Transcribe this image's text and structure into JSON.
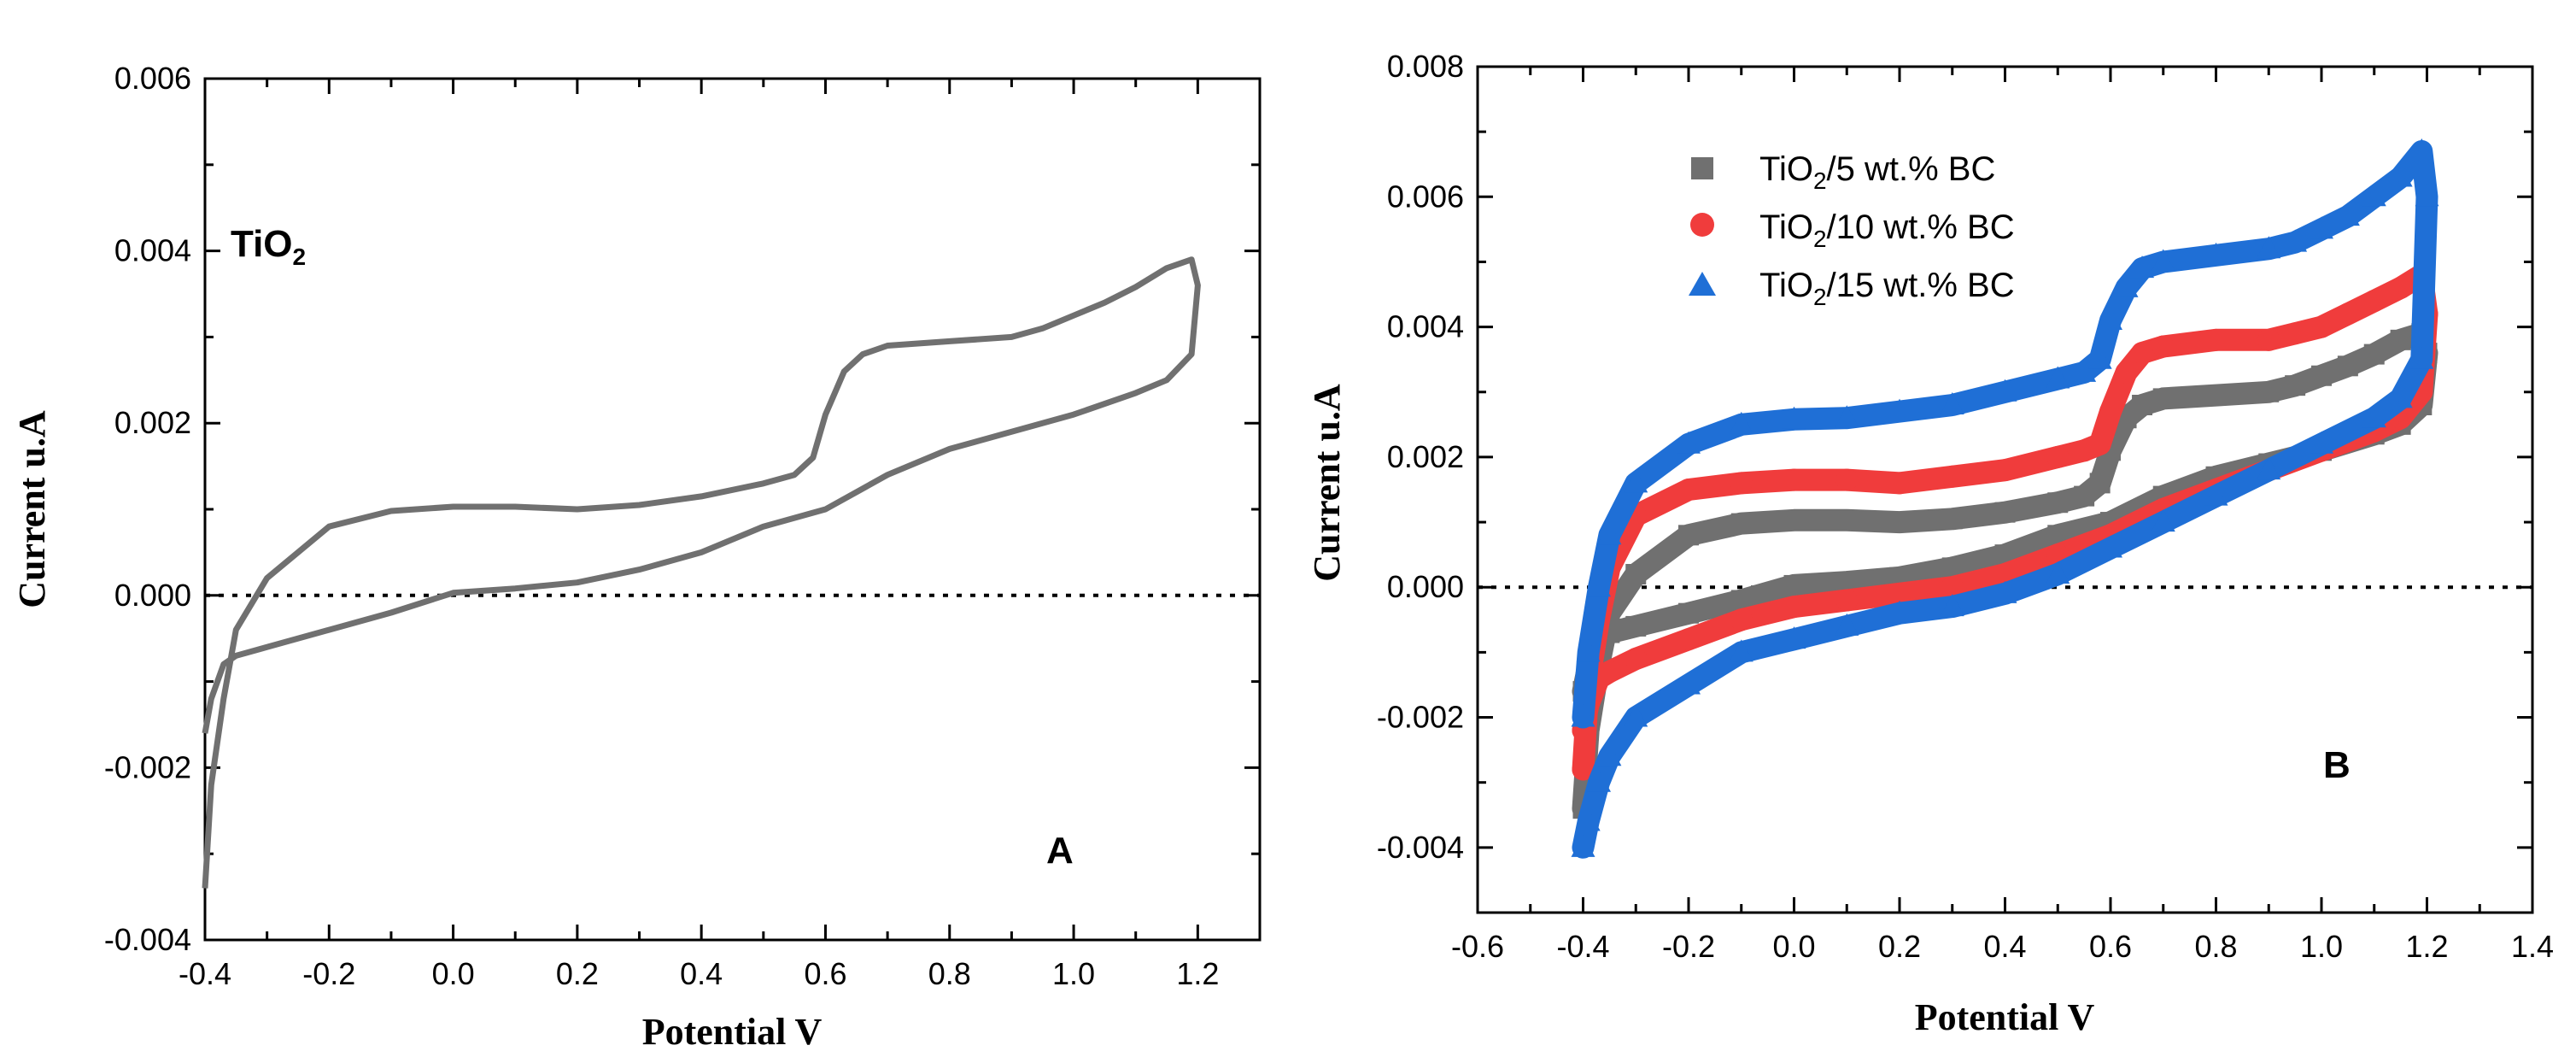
{
  "chart_data": [
    {
      "type": "line",
      "panel_label": "A",
      "annotation": {
        "base": "TiO",
        "sub": "2"
      },
      "xlabel": "Potential V",
      "ylabel": "Current u.A",
      "xlim": [
        -0.4,
        1.3
      ],
      "ylim": [
        -0.004,
        0.006
      ],
      "xticks": [
        -0.4,
        -0.2,
        0.0,
        0.2,
        0.4,
        0.6,
        0.8,
        1.0,
        1.2
      ],
      "xtick_labels": [
        "-0.4",
        "-0.2",
        "0.0",
        "0.2",
        "0.4",
        "0.6",
        "0.8",
        "1.0",
        "1.2"
      ],
      "yticks": [
        -0.004,
        -0.002,
        0.0,
        0.002,
        0.004,
        0.006
      ],
      "ytick_labels": [
        "-0.004",
        "-0.002",
        "0.000",
        "0.002",
        "0.004",
        "0.006"
      ],
      "zero_line": true,
      "series": [
        {
          "name": "TiO2",
          "color": "#707070",
          "x": [
            -0.4,
            -0.39,
            -0.37,
            -0.35,
            -0.3,
            -0.2,
            -0.1,
            0.0,
            0.1,
            0.2,
            0.3,
            0.4,
            0.5,
            0.55,
            0.58,
            0.6,
            0.63,
            0.66,
            0.7,
            0.8,
            0.9,
            0.95,
            1.0,
            1.05,
            1.1,
            1.15,
            1.19,
            1.2,
            1.19,
            1.15,
            1.1,
            1.0,
            0.9,
            0.8,
            0.7,
            0.6,
            0.5,
            0.4,
            0.3,
            0.2,
            0.1,
            0.0,
            -0.1,
            -0.2,
            -0.3,
            -0.35,
            -0.37,
            -0.39,
            -0.4
          ],
          "y": [
            -0.0034,
            -0.0022,
            -0.0012,
            -0.0004,
            0.0002,
            0.0008,
            0.00098,
            0.00103,
            0.00103,
            0.001,
            0.00105,
            0.00115,
            0.0013,
            0.0014,
            0.0016,
            0.0021,
            0.0026,
            0.0028,
            0.0029,
            0.00295,
            0.003,
            0.0031,
            0.00325,
            0.0034,
            0.00358,
            0.0038,
            0.0039,
            0.0036,
            0.0028,
            0.0025,
            0.00235,
            0.0021,
            0.0019,
            0.0017,
            0.0014,
            0.001,
            0.0008,
            0.0005,
            0.0003,
            0.00015,
            8e-05,
            3e-05,
            -0.0002,
            -0.0004,
            -0.0006,
            -0.0007,
            -0.0008,
            -0.0012,
            -0.0016
          ]
        }
      ]
    },
    {
      "type": "scatter",
      "panel_label": "B",
      "xlabel": "Potential V",
      "ylabel": "Current u.A",
      "xlim": [
        -0.6,
        1.4
      ],
      "ylim": [
        -0.005,
        0.008
      ],
      "xticks": [
        -0.6,
        -0.4,
        -0.2,
        0.0,
        0.2,
        0.4,
        0.6,
        0.8,
        1.0,
        1.2,
        1.4
      ],
      "xtick_labels": [
        "-0.6",
        "-0.4",
        "-0.2",
        "0.0",
        "0.2",
        "0.4",
        "0.6",
        "0.8",
        "1.0",
        "1.2",
        "1.4"
      ],
      "yticks": [
        -0.004,
        -0.002,
        0.0,
        0.002,
        0.004,
        0.006,
        0.008
      ],
      "ytick_labels": [
        "-0.004",
        "-0.002",
        "0.000",
        "0.002",
        "0.004",
        "0.006",
        "0.008"
      ],
      "zero_line": true,
      "legend_position": "top-left",
      "series": [
        {
          "name": "TiO2/5 wt.% BC",
          "legend": {
            "pre": "TiO",
            "sub": "2",
            "post": "/5 wt.% BC"
          },
          "marker": "square",
          "color": "#707070",
          "x": [
            -0.4,
            -0.39,
            -0.37,
            -0.35,
            -0.3,
            -0.2,
            -0.1,
            0.0,
            0.1,
            0.2,
            0.3,
            0.4,
            0.5,
            0.55,
            0.58,
            0.6,
            0.63,
            0.66,
            0.7,
            0.8,
            0.9,
            0.95,
            1.0,
            1.05,
            1.1,
            1.15,
            1.19,
            1.2,
            1.19,
            1.15,
            1.1,
            1.0,
            0.9,
            0.8,
            0.7,
            0.6,
            0.5,
            0.4,
            0.3,
            0.2,
            0.1,
            0.0,
            -0.1,
            -0.2,
            -0.3,
            -0.35,
            -0.37,
            -0.39,
            -0.4
          ],
          "y": [
            -0.0034,
            -0.0022,
            -0.0012,
            -0.0004,
            0.0002,
            0.0008,
            0.00098,
            0.00103,
            0.00103,
            0.001,
            0.00105,
            0.00115,
            0.0013,
            0.0014,
            0.0016,
            0.0021,
            0.0026,
            0.0028,
            0.0029,
            0.00295,
            0.003,
            0.0031,
            0.00325,
            0.0034,
            0.00358,
            0.0038,
            0.0039,
            0.0036,
            0.0028,
            0.0025,
            0.00235,
            0.0021,
            0.0019,
            0.0017,
            0.0014,
            0.001,
            0.0008,
            0.0005,
            0.0003,
            0.00015,
            8e-05,
            3e-05,
            -0.0002,
            -0.0004,
            -0.0006,
            -0.0007,
            -0.0008,
            -0.0012,
            -0.0016
          ]
        },
        {
          "name": "TiO2/10 wt.% BC",
          "legend": {
            "pre": "TiO",
            "sub": "2",
            "post": "/10 wt.% BC"
          },
          "marker": "circle",
          "color": "#f03c3c",
          "x": [
            -0.4,
            -0.39,
            -0.37,
            -0.35,
            -0.3,
            -0.2,
            -0.1,
            0.0,
            0.1,
            0.2,
            0.3,
            0.4,
            0.5,
            0.55,
            0.58,
            0.6,
            0.63,
            0.66,
            0.7,
            0.8,
            0.9,
            0.95,
            1.0,
            1.05,
            1.1,
            1.15,
            1.19,
            1.2,
            1.19,
            1.15,
            1.1,
            1.0,
            0.9,
            0.8,
            0.7,
            0.6,
            0.5,
            0.4,
            0.3,
            0.2,
            0.1,
            0.0,
            -0.1,
            -0.2,
            -0.3,
            -0.35,
            -0.37,
            -0.39,
            -0.4
          ],
          "y": [
            -0.0028,
            -0.0015,
            -0.0005,
            0.0003,
            0.0011,
            0.0015,
            0.0016,
            0.00165,
            0.00165,
            0.0016,
            0.0017,
            0.0018,
            0.002,
            0.0021,
            0.0022,
            0.0027,
            0.0033,
            0.0036,
            0.0037,
            0.0038,
            0.0038,
            0.0039,
            0.004,
            0.0042,
            0.0044,
            0.0046,
            0.0048,
            0.0042,
            0.003,
            0.0026,
            0.0024,
            0.0021,
            0.0018,
            0.0015,
            0.0012,
            0.0008,
            0.0005,
            0.0002,
            0.0,
            -0.0001,
            -0.0002,
            -0.0003,
            -0.0005,
            -0.0008,
            -0.0011,
            -0.0013,
            -0.0014,
            -0.0018,
            -0.0022
          ]
        },
        {
          "name": "TiO2/15 wt.% BC",
          "legend": {
            "pre": "TiO",
            "sub": "2",
            "post": "/15 wt.% BC"
          },
          "marker": "triangle",
          "color": "#1f6fd6",
          "x": [
            -0.4,
            -0.39,
            -0.37,
            -0.35,
            -0.3,
            -0.2,
            -0.1,
            0.0,
            0.1,
            0.2,
            0.3,
            0.4,
            0.5,
            0.55,
            0.58,
            0.6,
            0.63,
            0.66,
            0.7,
            0.8,
            0.9,
            0.95,
            1.0,
            1.05,
            1.1,
            1.15,
            1.19,
            1.2,
            1.19,
            1.15,
            1.1,
            1.0,
            0.9,
            0.8,
            0.7,
            0.6,
            0.5,
            0.4,
            0.3,
            0.2,
            0.1,
            0.0,
            -0.1,
            -0.2,
            -0.3,
            -0.35,
            -0.37,
            -0.39,
            -0.4
          ],
          "y": [
            -0.002,
            -0.001,
            0.0,
            0.0008,
            0.0016,
            0.0022,
            0.0025,
            0.00258,
            0.0026,
            0.0027,
            0.0028,
            0.003,
            0.0032,
            0.0033,
            0.0035,
            0.0041,
            0.0046,
            0.0049,
            0.005,
            0.0051,
            0.0052,
            0.0053,
            0.0055,
            0.0057,
            0.006,
            0.0063,
            0.0067,
            0.006,
            0.0035,
            0.0029,
            0.0026,
            0.0022,
            0.0018,
            0.0014,
            0.001,
            0.0006,
            0.0002,
            -0.0001,
            -0.0003,
            -0.0004,
            -0.0006,
            -0.0008,
            -0.001,
            -0.0015,
            -0.002,
            -0.0026,
            -0.003,
            -0.0036,
            -0.004
          ]
        }
      ]
    }
  ]
}
